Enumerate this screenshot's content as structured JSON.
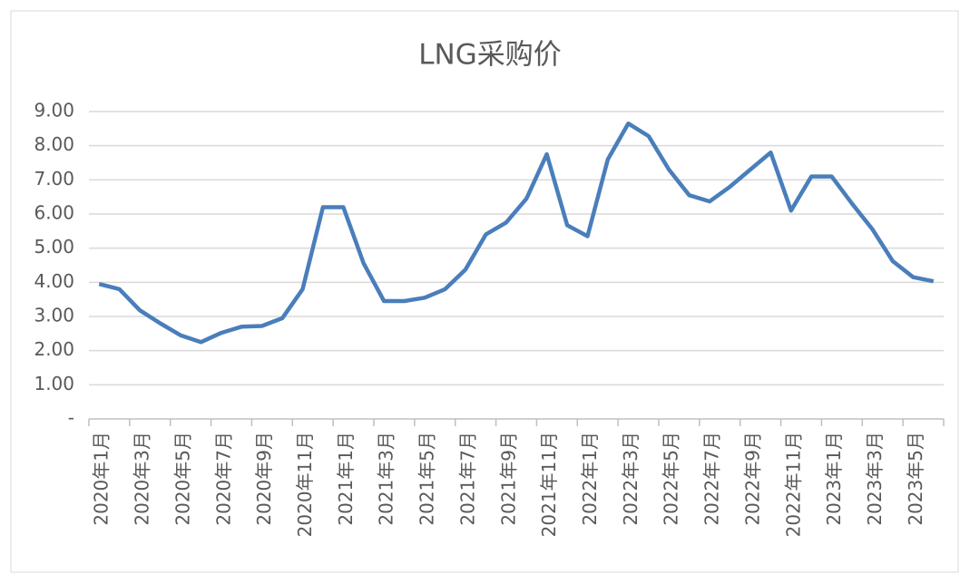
{
  "chart_data": {
    "type": "line",
    "title": "LNG采购价",
    "categories": [
      "2020年1月",
      null,
      "2020年3月",
      null,
      "2020年5月",
      null,
      "2020年7月",
      null,
      "2020年9月",
      null,
      "2020年11月",
      null,
      "2021年1月",
      null,
      "2021年3月",
      null,
      "2021年5月",
      null,
      "2021年7月",
      null,
      "2021年9月",
      null,
      "2021年11月",
      null,
      "2022年1月",
      null,
      "2022年3月",
      null,
      "2022年5月",
      null,
      "2022年7月",
      null,
      "2022年9月",
      null,
      "2022年11月",
      null,
      "2023年1月",
      null,
      "2023年3月",
      null,
      "2023年5月",
      null
    ],
    "values": [
      3.95,
      3.8,
      3.18,
      2.8,
      2.45,
      2.25,
      2.52,
      2.7,
      2.72,
      2.95,
      3.8,
      6.2,
      6.2,
      4.55,
      3.45,
      3.45,
      3.55,
      3.8,
      4.37,
      5.4,
      5.75,
      6.45,
      7.75,
      5.67,
      5.35,
      7.6,
      8.65,
      8.28,
      7.3,
      6.55,
      6.37,
      6.8,
      7.3,
      7.8,
      6.1,
      7.1,
      7.1,
      6.3,
      5.55,
      4.62,
      4.15,
      4.03
    ],
    "color": "#4a7ebb",
    "ylim": [
      0,
      9
    ],
    "yticks": [
      {
        "value": 0,
        "label": "-"
      },
      {
        "value": 1,
        "label": "1.00"
      },
      {
        "value": 2,
        "label": "2.00"
      },
      {
        "value": 3,
        "label": "3.00"
      },
      {
        "value": 4,
        "label": "4.00"
      },
      {
        "value": 5,
        "label": "5.00"
      },
      {
        "value": 6,
        "label": "6.00"
      },
      {
        "value": 7,
        "label": "7.00"
      },
      {
        "value": 8,
        "label": "8.00"
      },
      {
        "value": 9,
        "label": "9.00"
      }
    ],
    "grid": true
  }
}
